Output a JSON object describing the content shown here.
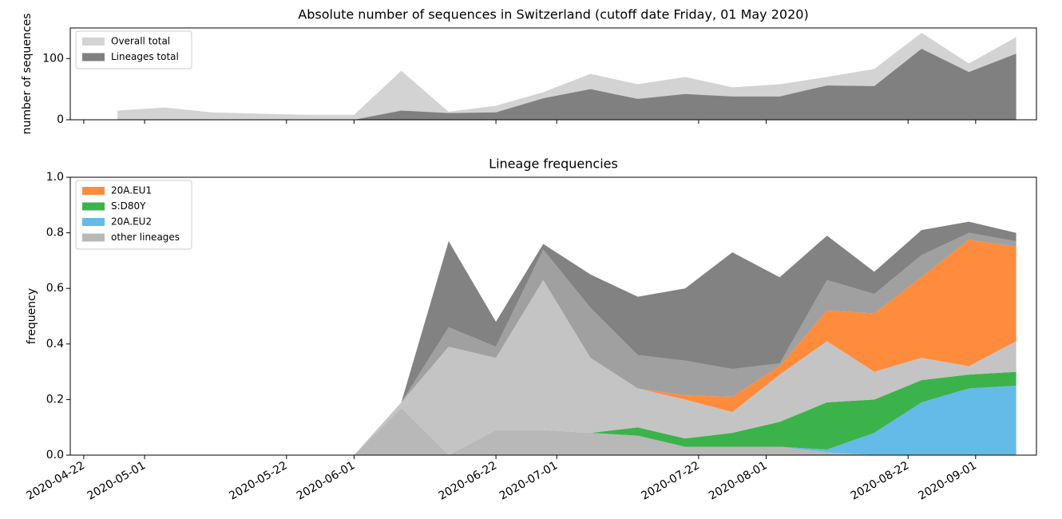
{
  "chart_data": [
    {
      "type": "area",
      "stacked": false,
      "title": "Absolute number of sequences in Switzerland (cutoff date Friday, 01 May 2020)",
      "y_label": "number of sequences",
      "x": [
        "2020-04-27",
        "2020-05-04",
        "2020-05-11",
        "2020-05-18",
        "2020-05-25",
        "2020-06-01",
        "2020-06-08",
        "2020-06-15",
        "2020-06-22",
        "2020-06-29",
        "2020-07-06",
        "2020-07-13",
        "2020-07-20",
        "2020-07-27",
        "2020-08-03",
        "2020-08-10",
        "2020-08-17",
        "2020-08-24",
        "2020-08-31",
        "2020-09-07"
      ],
      "series": [
        {
          "name": "Overall total",
          "color": "#d3d3d3",
          "values": [
            15,
            20,
            12,
            10,
            8,
            8,
            80,
            13,
            23,
            45,
            75,
            58,
            70,
            53,
            58,
            70,
            83,
            142,
            92,
            135
          ]
        },
        {
          "name": "Lineages total",
          "color": "#808080",
          "values": [
            0,
            0,
            0,
            0,
            0,
            0,
            15,
            11,
            12,
            35,
            50,
            34,
            42,
            38,
            38,
            56,
            55,
            116,
            78,
            108
          ]
        }
      ],
      "xlim": [
        "2020-04-20",
        "2020-09-10"
      ],
      "xticks": [
        "2020-04-22",
        "2020-05-01",
        "2020-05-22",
        "2020-06-01",
        "2020-06-22",
        "2020-07-01",
        "2020-07-22",
        "2020-08-01",
        "2020-08-22",
        "2020-09-01"
      ],
      "ylim": [
        0,
        150
      ],
      "yticks": [
        0,
        100
      ],
      "legend": "upper left"
    },
    {
      "type": "area",
      "stacked": true,
      "legend_reverse": true,
      "title": "Lineage frequencies",
      "y_label": "frequency",
      "x": [
        "2020-04-27",
        "2020-05-04",
        "2020-05-11",
        "2020-05-18",
        "2020-05-25",
        "2020-06-01",
        "2020-06-08",
        "2020-06-15",
        "2020-06-22",
        "2020-06-29",
        "2020-07-06",
        "2020-07-13",
        "2020-07-20",
        "2020-07-27",
        "2020-08-03",
        "2020-08-10",
        "2020-08-17",
        "2020-08-24",
        "2020-08-31",
        "2020-09-07"
      ],
      "series": [
        {
          "name": "other lineages",
          "color": "#b8b8b8",
          "values": [
            0,
            0,
            0,
            0,
            0,
            0,
            0.17,
            0,
            0.09,
            0.09,
            0.08,
            0.07,
            0.03,
            0.03,
            0.03,
            0.01,
            0,
            0,
            0,
            0
          ]
        },
        {
          "name": "20A.EU2",
          "color": "#64bbe8",
          "values": [
            0,
            0,
            0,
            0,
            0,
            0,
            0,
            0,
            0,
            0,
            0,
            0,
            0,
            0,
            0,
            0.01,
            0.08,
            0.19,
            0.24,
            0.25
          ]
        },
        {
          "name": "S:D80Y",
          "color": "#3cb34a",
          "values": [
            0,
            0,
            0,
            0,
            0,
            0,
            0,
            0,
            0,
            0,
            0,
            0.03,
            0.03,
            0.05,
            0.09,
            0.17,
            0.12,
            0.08,
            0.05,
            0.05
          ]
        },
        {
          "color": "#c4c4c4",
          "values": [
            0,
            0,
            0,
            0,
            0,
            0,
            0.02,
            0.39,
            0.26,
            0.54,
            0.27,
            0.14,
            0.14,
            0.075,
            0.17,
            0.22,
            0.1,
            0.08,
            0.03,
            0.11
          ]
        },
        {
          "name": "20A.EU1",
          "color": "#ff8c3c",
          "values": [
            0,
            0,
            0,
            0,
            0,
            0,
            0,
            0,
            0,
            0,
            0,
            0,
            0.015,
            0.055,
            0.03,
            0.11,
            0.21,
            0.29,
            0.455,
            0.34
          ]
        },
        {
          "color": "#a0a0a0",
          "values": [
            0,
            0,
            0,
            0,
            0,
            0,
            0,
            0.07,
            0.04,
            0.11,
            0.18,
            0.12,
            0.125,
            0.1,
            0.01,
            0.11,
            0.07,
            0.08,
            0.025,
            0.02
          ]
        },
        {
          "color": "#828282",
          "values": [
            0,
            0,
            0,
            0,
            0,
            0,
            0,
            0.31,
            0.09,
            0.02,
            0.12,
            0.21,
            0.26,
            0.42,
            0.31,
            0.16,
            0.08,
            0.09,
            0.04,
            0.03
          ]
        }
      ],
      "xlim": [
        "2020-04-20",
        "2020-09-10"
      ],
      "xticks": [
        "2020-04-22",
        "2020-05-01",
        "2020-05-22",
        "2020-06-01",
        "2020-06-22",
        "2020-07-01",
        "2020-07-22",
        "2020-08-01",
        "2020-08-22",
        "2020-09-01"
      ],
      "ylim": [
        0,
        1
      ],
      "yticks": [
        {
          "value": 0,
          "label": "0.0"
        },
        {
          "value": 0.2,
          "label": "0.2"
        },
        {
          "value": 0.4,
          "label": "0.4"
        },
        {
          "value": 0.6,
          "label": "0.6"
        },
        {
          "value": 0.8,
          "label": "0.8"
        },
        {
          "value": 1,
          "label": "1.0"
        }
      ],
      "legend": "upper left"
    }
  ]
}
